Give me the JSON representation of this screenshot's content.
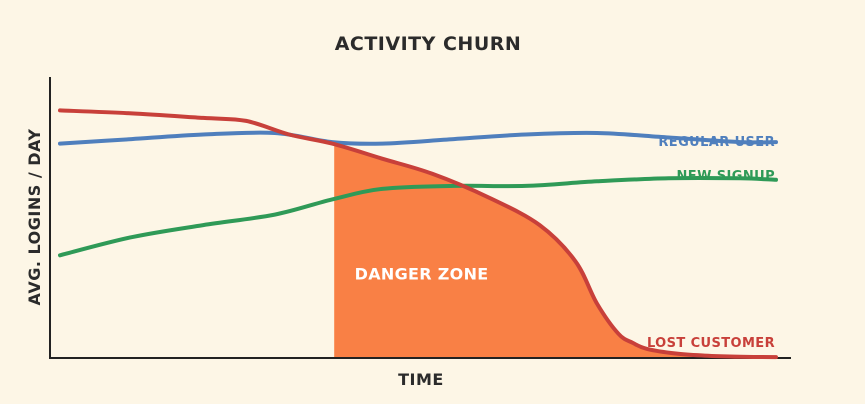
{
  "chart_data": {
    "type": "line",
    "title": "ACTIVITY CHURN",
    "xlabel": "TIME",
    "ylabel": "AVG. LOGINS / DAY",
    "xlim": [
      0,
      100
    ],
    "ylim": [
      0,
      100
    ],
    "grid": false,
    "legend": "inline-right",
    "series": [
      {
        "name": "REGULAR USER",
        "color": "#4f7fbd",
        "x": [
          0,
          10,
          20,
          30,
          38,
          45,
          55,
          65,
          75,
          85,
          95,
          100
        ],
        "values": [
          71,
          72.5,
          74,
          74.5,
          71.5,
          71,
          72.5,
          74,
          74.5,
          73,
          71.5,
          71.5
        ]
      },
      {
        "name": "NEW SIGNUP",
        "color": "#2f9a57",
        "x": [
          0,
          10,
          20,
          30,
          38,
          45,
          55,
          65,
          75,
          85,
          95,
          100
        ],
        "values": [
          34,
          40,
          44,
          47.5,
          52.5,
          56,
          57,
          57,
          58.5,
          59.5,
          59.5,
          59
        ]
      },
      {
        "name": "LOST CUSTOMER",
        "color": "#c8403a",
        "x": [
          0,
          10,
          20,
          26,
          32,
          38,
          45,
          52,
          60,
          67,
          72,
          75,
          78,
          80,
          82,
          86,
          90,
          95,
          100
        ],
        "values": [
          82,
          81,
          79.5,
          78.5,
          74,
          71,
          66,
          61,
          53,
          44,
          32,
          18,
          8,
          5,
          3,
          1.5,
          0.8,
          0.4,
          0.3
        ]
      }
    ],
    "annotations": [
      {
        "text": "DANGER ZONE",
        "color": "#f98045",
        "x_start": 38.3,
        "under_series": "LOST CUSTOMER",
        "text_x": 50.5,
        "text_y": 28
      }
    ]
  }
}
